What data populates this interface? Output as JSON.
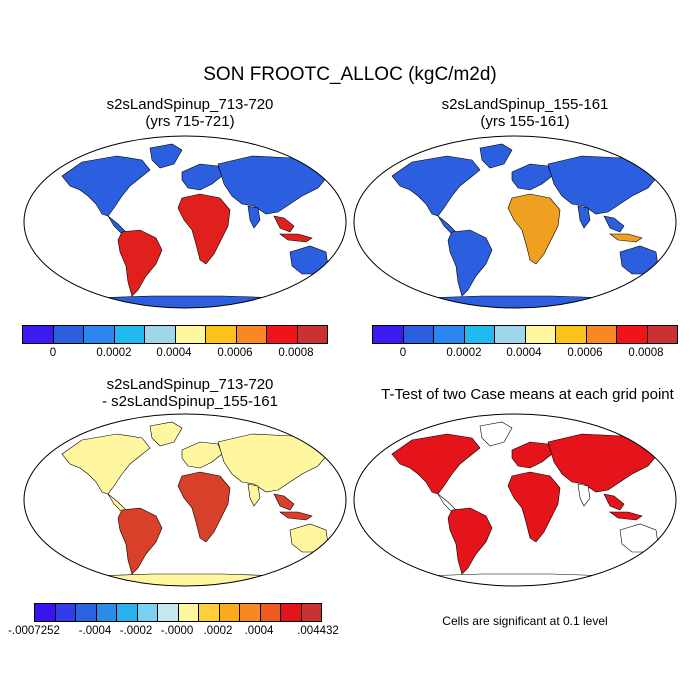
{
  "title": "SON FROOTC_ALLOC (kgC/m2d)",
  "panels": [
    {
      "line1": "s2sLandSpinup_713-720",
      "line2": "(yrs 715-721)"
    },
    {
      "line1": "s2sLandSpinup_155-161",
      "line2": "(yrs 155-161)"
    },
    {
      "line1": "s2sLandSpinup_713-720",
      "line2": "- s2sLandSpinup_155-161"
    },
    {
      "line1": "T-Test of two Case means at each grid point",
      "line2": ""
    }
  ],
  "colorbar_abs": {
    "colors": [
      "#3b1cf0",
      "#2b5fe0",
      "#2b86ee",
      "#22b8f0",
      "#9fd6ec",
      "#fff7a0",
      "#fcc21c",
      "#f98822",
      "#f0141a",
      "#c83232"
    ],
    "labels": [
      "0",
      "0.0002",
      "0.0004",
      "0.0006",
      "0.0008"
    ]
  },
  "colorbar_diff": {
    "colors": [
      "#3a14f0",
      "#2f3ce8",
      "#2a63e0",
      "#2a8ce8",
      "#2bb0ee",
      "#7ccfee",
      "#c8e8f0",
      "#fff7a0",
      "#fcd03a",
      "#fcaa1c",
      "#f98822",
      "#f05a1e",
      "#e4141a",
      "#c83232"
    ],
    "labels": [
      "-.0007252",
      "-.0004",
      "-.0002",
      "-.0000",
      ".0002",
      ".0004",
      ".004432"
    ]
  },
  "note": "Cells are significant at 0.1 level",
  "colors": {
    "ocean": "#ffffff",
    "land_low": "#2b5fe0",
    "land_diff_bg": "#fff7a0",
    "sig": "#e4141a",
    "tropics_high": "#e0201c"
  }
}
